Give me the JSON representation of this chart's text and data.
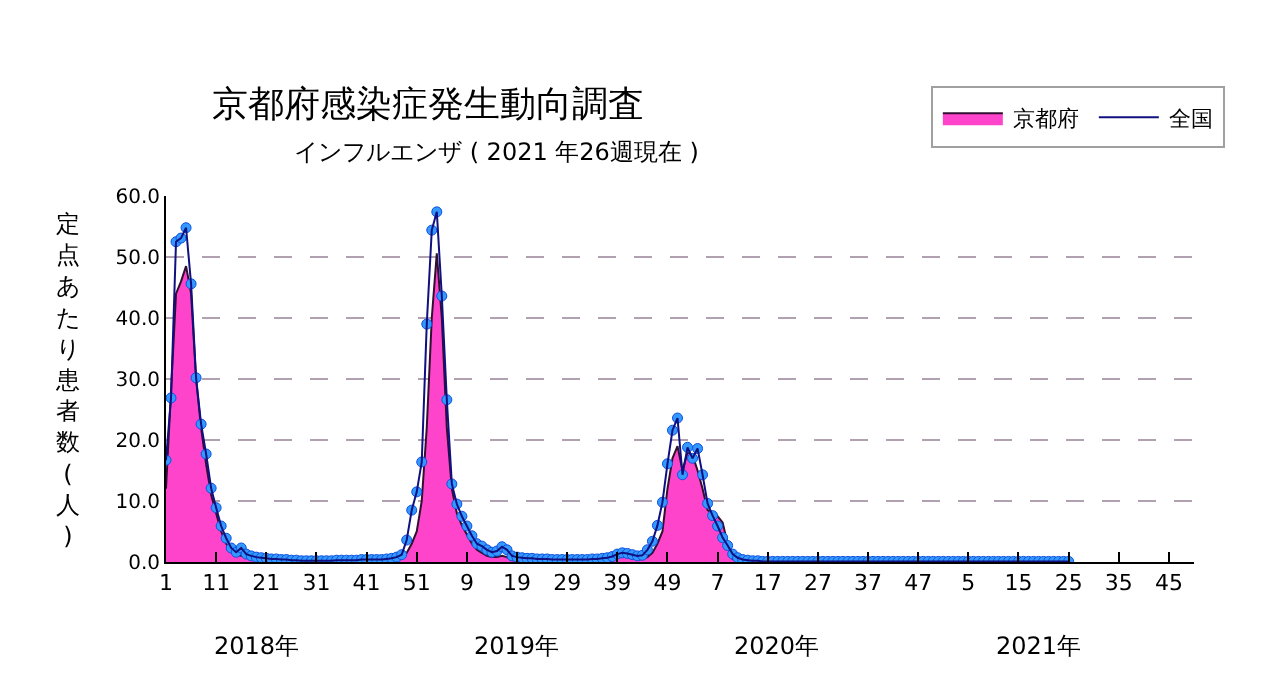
{
  "chart_data": {
    "type": "area",
    "title": "京都府感染症発生動向調査",
    "subtitle": "インフルエンザ ( 2021 年26週現在 )",
    "ylabel": "定点あたり患者数(人)",
    "categories": [
      "1",
      null,
      null,
      null,
      null,
      null,
      null,
      null,
      null,
      null,
      "11",
      null,
      null,
      null,
      null,
      null,
      null,
      null,
      null,
      null,
      "21",
      null,
      null,
      null,
      null,
      null,
      null,
      null,
      null,
      null,
      "31",
      null,
      null,
      null,
      null,
      null,
      null,
      null,
      null,
      null,
      "41",
      null,
      null,
      null,
      null,
      null,
      null,
      null,
      null,
      null,
      "51",
      null,
      null,
      null,
      null,
      null,
      null,
      null,
      null,
      null,
      "9",
      null,
      null,
      null,
      null,
      null,
      null,
      null,
      null,
      null,
      "19",
      null,
      null,
      null,
      null,
      null,
      null,
      null,
      null,
      null,
      "29",
      null,
      null,
      null,
      null,
      null,
      null,
      null,
      null,
      null,
      "39",
      null,
      null,
      null,
      null,
      null,
      null,
      null,
      null,
      null,
      "49",
      null,
      null,
      null,
      null,
      null,
      null,
      null,
      null,
      null,
      "7",
      null,
      null,
      null,
      null,
      null,
      null,
      null,
      null,
      null,
      "17",
      null,
      null,
      null,
      null,
      null,
      null,
      null,
      null,
      null,
      "27",
      null,
      null,
      null,
      null,
      null,
      null,
      null,
      null,
      null,
      "37",
      null,
      null,
      null,
      null,
      null,
      null,
      null,
      null,
      null,
      "47",
      null,
      null,
      null,
      null,
      null,
      null,
      null,
      null,
      null,
      "5",
      null,
      null,
      null,
      null,
      null,
      null,
      null,
      null,
      null,
      "15",
      null,
      null,
      null,
      null,
      null,
      null,
      null,
      null,
      null,
      "25",
      null,
      null,
      null,
      null,
      null,
      null,
      null,
      null,
      null,
      "35",
      null,
      null,
      null,
      null,
      null,
      null,
      null,
      null,
      null,
      "45",
      null,
      null,
      null,
      null,
      null
    ],
    "series": [
      {
        "name": "京都府",
        "color": "#ff44cc",
        "values": [
          12.0,
          28.0,
          44.0,
          46.0,
          48.5,
          44.0,
          30.0,
          22.0,
          16.0,
          11.0,
          8.0,
          5.0,
          3.0,
          2.0,
          1.2,
          1.0,
          0.8,
          0.6,
          0.5,
          0.4,
          0.3,
          0.3,
          0.2,
          0.2,
          0.1,
          0.1,
          0.1,
          0.1,
          0.1,
          0.1,
          0.1,
          0.1,
          0.1,
          0.1,
          0.1,
          0.1,
          0.1,
          0.1,
          0.1,
          0.1,
          0.1,
          0.1,
          0.1,
          0.1,
          0.1,
          0.3,
          0.5,
          0.7,
          1.5,
          3.0,
          5.0,
          10.0,
          22.0,
          40.0,
          50.6,
          40.0,
          22.0,
          12.0,
          8.0,
          6.0,
          4.5,
          3.0,
          2.0,
          1.5,
          1.0,
          0.8,
          0.8,
          1.0,
          0.8,
          0.3,
          0.3,
          0.3,
          0.3,
          0.3,
          0.3,
          0.3,
          0.3,
          0.3,
          0.3,
          0.3,
          0.3,
          0.3,
          0.3,
          0.3,
          0.3,
          0.3,
          0.3,
          0.3,
          0.3,
          0.3,
          0.8,
          1.0,
          0.9,
          0.6,
          0.4,
          0.5,
          0.8,
          1.5,
          3.0,
          5.0,
          12.0,
          17.0,
          19.0,
          15.0,
          18.0,
          17.5,
          15.0,
          12.0,
          8.5,
          8.0,
          7.5,
          6.5,
          3.0,
          0.5,
          0.1,
          0.0,
          0.0,
          0.0,
          0.0,
          0.0,
          0.0,
          0.0,
          0.0,
          0.0,
          0.0,
          0.0,
          0.0,
          0.0,
          0.0,
          0.0,
          0.0,
          0.0,
          0.0,
          0.0,
          0.0,
          0.0,
          0.0,
          0.0,
          0.0,
          0.0,
          0.0,
          0.0,
          0.0,
          0.0,
          0.0,
          0.0,
          0.0,
          0.0,
          0.0,
          0.0,
          0.0,
          0.0,
          0.0,
          0.0,
          0.0,
          0.0,
          0.0,
          0.0,
          0.0,
          0.0,
          0.0,
          0.0,
          0.0,
          0.0,
          0.0,
          0.0,
          0.0,
          0.0,
          0.0,
          0.0,
          0.0,
          0.0,
          0.0,
          0.0,
          0.0,
          0.0,
          0.0,
          0.0,
          0.0,
          0.0,
          0.0,
          null,
          null,
          null,
          null,
          null,
          null,
          null,
          null,
          null,
          null,
          null,
          null,
          null,
          null,
          null,
          null,
          null,
          null,
          null,
          null,
          null,
          null,
          null,
          null,
          null
        ]
      },
      {
        "name": "全国",
        "type": "line",
        "marker": "circle",
        "color": "#3399ff",
        "values": [
          16.7,
          26.9,
          52.5,
          53.1,
          54.8,
          45.6,
          30.2,
          22.6,
          17.7,
          12.1,
          8.9,
          5.9,
          3.9,
          2.3,
          1.6,
          2.3,
          1.3,
          1.0,
          0.8,
          0.7,
          0.6,
          0.5,
          0.5,
          0.4,
          0.4,
          0.3,
          0.3,
          0.2,
          0.2,
          0.2,
          0.2,
          0.2,
          0.2,
          0.2,
          0.3,
          0.3,
          0.3,
          0.3,
          0.3,
          0.4,
          0.4,
          0.4,
          0.4,
          0.4,
          0.5,
          0.6,
          0.8,
          1.2,
          3.6,
          8.5,
          11.5,
          16.4,
          39.0,
          54.4,
          57.4,
          43.6,
          26.6,
          12.8,
          9.5,
          7.5,
          5.9,
          4.3,
          3.0,
          2.6,
          2.0,
          1.6,
          1.8,
          2.5,
          2.0,
          1.0,
          0.8,
          0.7,
          0.6,
          0.6,
          0.5,
          0.5,
          0.5,
          0.4,
          0.4,
          0.4,
          0.4,
          0.4,
          0.4,
          0.4,
          0.4,
          0.5,
          0.5,
          0.6,
          0.7,
          0.9,
          1.3,
          1.5,
          1.4,
          1.2,
          1.0,
          1.1,
          2.0,
          3.4,
          6.0,
          9.8,
          16.1,
          21.6,
          23.6,
          14.3,
          18.8,
          17.0,
          18.6,
          14.3,
          9.6,
          7.6,
          5.9,
          4.0,
          2.7,
          1.3,
          0.7,
          0.4,
          0.3,
          0.2,
          0.2,
          0.1,
          0.1,
          0.1,
          0.1,
          0.1,
          0.1,
          0.1,
          0.1,
          0.1,
          0.1,
          0.1,
          0.1,
          0.1,
          0.1,
          0.1,
          0.1,
          0.1,
          0.1,
          0.1,
          0.1,
          0.1,
          0.1,
          0.1,
          0.1,
          0.1,
          0.1,
          0.1,
          0.1,
          0.1,
          0.1,
          0.1,
          0.1,
          0.1,
          0.1,
          0.1,
          0.1,
          0.1,
          0.1,
          0.1,
          0.1,
          0.1,
          0.1,
          0.1,
          0.1,
          0.1,
          0.1,
          0.1,
          0.1,
          0.1,
          0.1,
          0.1,
          0.1,
          0.1,
          0.1,
          0.1,
          0.1,
          0.1,
          0.1,
          0.1,
          0.1,
          0.1,
          0.1,
          null,
          null,
          null,
          null,
          null,
          null,
          null,
          null,
          null,
          null,
          null,
          null,
          null,
          null,
          null,
          null,
          null,
          null,
          null,
          null,
          null,
          null,
          null,
          null,
          null
        ]
      }
    ],
    "ylim": [
      0,
      60
    ],
    "yticks": [
      {
        "value": 0,
        "label": "0.0"
      },
      {
        "value": 10,
        "label": "10.0"
      },
      {
        "value": 20,
        "label": "20.0"
      },
      {
        "value": 30,
        "label": "30.0"
      },
      {
        "value": 40,
        "label": "40.0"
      },
      {
        "value": 50,
        "label": "50.0"
      },
      {
        "value": 60,
        "label": "60.0"
      }
    ],
    "annotations": [
      "2018年",
      "2019年",
      "2020年",
      "2021年"
    ],
    "grid": "y",
    "legend": "top right"
  }
}
